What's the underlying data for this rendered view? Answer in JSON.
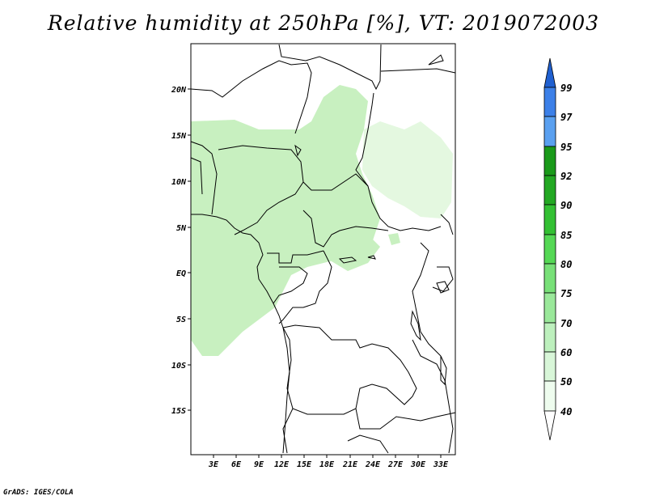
{
  "title": "Relative humidity at 250hPa [%], VT: 2019072003",
  "credit": "GrADS: IGES/COLA",
  "map": {
    "lat_labels": [
      "20N",
      "15N",
      "10N",
      "5N",
      "EQ",
      "5S",
      "10S",
      "15S"
    ],
    "lon_labels": [
      "3E",
      "6E",
      "9E",
      "12E",
      "15E",
      "18E",
      "21E",
      "24E",
      "27E",
      "30E",
      "33E"
    ],
    "humidity_fill_color": "#c8f0c0",
    "humidity_fill_light": "#e4f8e0"
  },
  "legend": {
    "levels": [
      "99",
      "97",
      "95",
      "92",
      "90",
      "85",
      "80",
      "75",
      "70",
      "60",
      "50",
      "40"
    ],
    "colors": {
      "top_blue": "#2060d0",
      "blue_97": "#3c80e8",
      "blue_95": "#5aa0f0",
      "green_92": "#1a9a1a",
      "green_90": "#23a823",
      "green_85": "#33c033",
      "green_80": "#55d855",
      "green_75": "#78e078",
      "green_70": "#9ae89a",
      "green_60": "#bdf0bd",
      "green_50": "#d8f6d8",
      "green_40": "#eefcee",
      "bottom": "#ffffff"
    }
  }
}
